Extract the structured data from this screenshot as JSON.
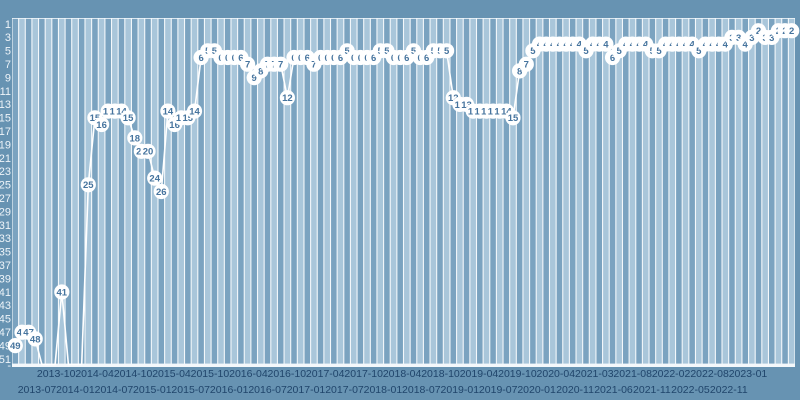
{
  "colors": {
    "background": "#6793b2",
    "stripe_light": "#a9c6da",
    "stripe_dark": "#7ba3c0",
    "separator_white": "#f4f8fb",
    "line": "#ffffff",
    "point_fill": "#ffffff",
    "point_text": "#46749e",
    "y_label": "#eef4f9",
    "x_label": "#20456b"
  },
  "chart_data": {
    "type": "line",
    "y_axis": {
      "inverted": true,
      "min": 1,
      "max": 51,
      "tick_labels": [
        1,
        3,
        5,
        7,
        9,
        11,
        13,
        15,
        17,
        19,
        21,
        23,
        25,
        27,
        29,
        31,
        33,
        35,
        37,
        39,
        41,
        43,
        45,
        47,
        49,
        51
      ],
      "off_scale_marker": "-"
    },
    "x_axis": {
      "rows": "alternating",
      "tick_labels": [
        "2013-07",
        "2013-10",
        "2014-01",
        "2014-04",
        "2014-07",
        "2014-10",
        "2015-01",
        "2015-04",
        "2015-07",
        "2015-10",
        "2016-01",
        "2016-04",
        "2016-07",
        "2016-10",
        "2017-01",
        "2017-04",
        "2017-07",
        "2017-10",
        "2018-01",
        "2018-04",
        "2018-07",
        "2018-10",
        "2019-01",
        "2019-04",
        "2019-07",
        "2019-10",
        "2020-01",
        "2020-04",
        "2020-11",
        "2021-03",
        "2021-06",
        "2021-08",
        "2021-11",
        "2022-02",
        "2022-05",
        "2022-08",
        "2022-11",
        "2023-01"
      ]
    },
    "series": [
      {
        "name": "rank",
        "months": [
          "2013-04",
          "2013-05",
          "2013-06",
          "2013-07",
          "2013-08",
          "2013-09",
          "2013-10",
          "2013-11",
          "2013-12",
          "2014-01",
          "2014-02",
          "2014-03",
          "2014-04",
          "2014-05",
          "2014-06",
          "2014-07",
          "2014-08",
          "2014-09",
          "2014-10",
          "2014-11",
          "2014-12",
          "2015-01",
          "2015-02",
          "2015-03",
          "2015-04",
          "2015-05",
          "2015-06",
          "2015-07",
          "2015-08",
          "2015-09",
          "2015-10",
          "2015-11",
          "2015-12",
          "2016-01",
          "2016-02",
          "2016-03",
          "2016-04",
          "2016-05",
          "2016-06",
          "2016-07",
          "2016-08",
          "2016-09",
          "2016-10",
          "2016-11",
          "2016-12",
          "2017-01",
          "2017-02",
          "2017-03",
          "2017-04",
          "2017-05",
          "2017-06",
          "2017-07",
          "2017-08",
          "2017-09",
          "2017-10",
          "2017-11",
          "2017-12",
          "2018-01",
          "2018-02",
          "2018-03",
          "2018-04",
          "2018-05",
          "2018-06",
          "2018-07",
          "2018-08",
          "2018-09",
          "2018-10",
          "2018-11",
          "2018-12",
          "2019-01",
          "2019-02",
          "2019-03",
          "2019-04",
          "2019-05",
          "2019-06",
          "2019-07",
          "2019-08",
          "2019-09",
          "2019-10",
          "2019-11",
          "2019-12",
          "2020-01",
          "2020-02",
          "2020-03",
          "2020-04",
          "2020-05",
          "2020-06",
          "2020-07",
          "2020-08",
          "2020-09",
          "2020-10",
          "2020-11",
          "2020-12",
          "2021-01",
          "2021-02",
          "2021-03",
          "2021-04",
          "2021-05",
          "2021-06",
          "2021-07",
          "2021-08",
          "2021-09",
          "2021-10",
          "2021-11",
          "2021-12",
          "2022-01",
          "2022-02",
          "2022-03",
          "2022-04",
          "2022-05",
          "2022-06",
          "2022-07",
          "2022-08",
          "2022-09",
          "2022-10",
          "2022-11",
          "2022-12",
          "2023-01"
        ],
        "values": [
          49,
          47,
          47,
          48,
          null,
          null,
          null,
          41,
          null,
          null,
          null,
          25,
          15,
          16,
          14,
          14,
          14,
          15,
          18,
          20,
          20,
          24,
          26,
          14,
          16,
          15,
          15,
          14,
          6,
          5,
          5,
          6,
          6,
          6,
          6,
          7,
          9,
          8,
          7,
          7,
          7,
          12,
          6,
          6,
          6,
          7,
          6,
          6,
          6,
          6,
          5,
          6,
          6,
          6,
          6,
          5,
          5,
          6,
          6,
          6,
          5,
          6,
          6,
          5,
          5,
          5,
          12,
          13,
          13,
          14,
          14,
          14,
          14,
          14,
          14,
          15,
          8,
          7,
          5,
          4,
          4,
          4,
          4,
          4,
          4,
          4,
          5,
          4,
          4,
          4,
          6,
          5,
          4,
          4,
          4,
          4,
          5,
          5,
          4,
          4,
          4,
          4,
          4,
          5,
          4,
          4,
          4,
          4,
          3,
          3,
          4,
          3,
          2,
          3,
          3,
          2,
          2,
          2
        ]
      }
    ]
  }
}
